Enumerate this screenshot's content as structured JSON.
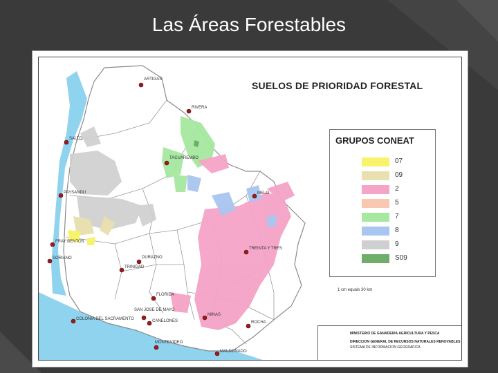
{
  "slide": {
    "title": "Las Áreas Forestables"
  },
  "map": {
    "heading": "SUELOS DE PRIORIDAD FORESTAL",
    "legend": {
      "title": "GRUPOS CONEAT",
      "items": [
        {
          "label": "07",
          "color": "#f7f36a"
        },
        {
          "label": "09",
          "color": "#e8e0b0"
        },
        {
          "label": "2",
          "color": "#f5a3c7"
        },
        {
          "label": "5",
          "color": "#f8c9b0"
        },
        {
          "label": "7",
          "color": "#a6e8a0"
        },
        {
          "label": "8",
          "color": "#a9c6f0"
        },
        {
          "label": "9",
          "color": "#cfcfcf"
        },
        {
          "label": "S09",
          "color": "#6eae6a"
        }
      ]
    },
    "scale": "1 cm equals 30 km",
    "credits": [
      "MINISTERIO DE GANADERIA AGRICULTURA Y PESCA",
      "DIRECCION GENERAL DE RECURSOS NATURALES RENOVABLES",
      "SISTEMA DE INFORMACION GEOGRAFICA"
    ],
    "cities": [
      {
        "name": "ARTIGAS"
      },
      {
        "name": "RIVERA"
      },
      {
        "name": "SALTO"
      },
      {
        "name": "TACUAREMBO"
      },
      {
        "name": "PAYSANDU"
      },
      {
        "name": "MELO"
      },
      {
        "name": "FRAY BENTOS"
      },
      {
        "name": "TREINTA Y TRES"
      },
      {
        "name": "SORIANO"
      },
      {
        "name": "DURAZNO"
      },
      {
        "name": "TRINIDAD"
      },
      {
        "name": "FLORIDA"
      },
      {
        "name": "SAN JOSE DE MAYO"
      },
      {
        "name": "COLONIA DEL SACRAMENTO"
      },
      {
        "name": "CANELONES"
      },
      {
        "name": "MINAS"
      },
      {
        "name": "ROCHA"
      },
      {
        "name": "MONTEVIDEO"
      },
      {
        "name": "MALDONADO"
      }
    ],
    "colors": {
      "water": "#8fd3ef",
      "city_marker": "#9b1b1b",
      "border": "#8a8a8a"
    }
  }
}
